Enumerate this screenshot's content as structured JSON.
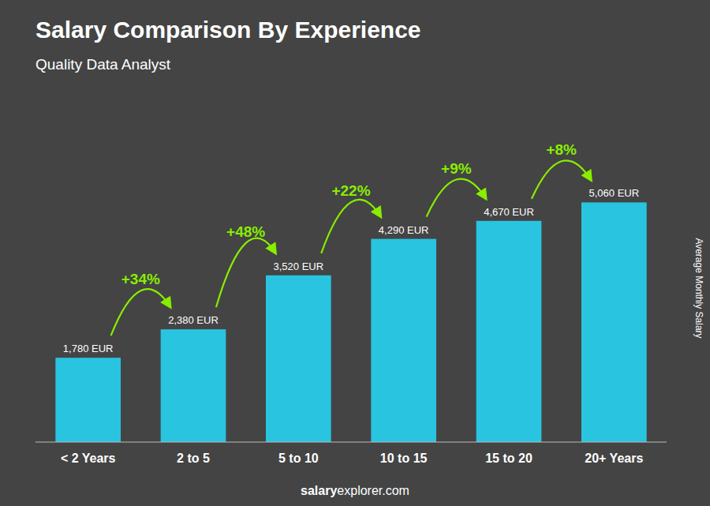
{
  "chart_data": {
    "type": "bar",
    "title": "Salary Comparison By Experience",
    "subtitle": "Quality Data Analyst",
    "ylabel": "Average Monthly Salary",
    "categories": [
      "< 2 Years",
      "2 to 5",
      "5 to 10",
      "10 to 15",
      "15 to 20",
      "20+ Years"
    ],
    "values": [
      1780,
      2380,
      3520,
      4290,
      4670,
      5060
    ],
    "value_labels": [
      "1,780 EUR",
      "2,380 EUR",
      "3,520 EUR",
      "4,290 EUR",
      "4,670 EUR",
      "5,060 EUR"
    ],
    "data_labels": true,
    "color": "#29c4e0",
    "annotations": [
      {
        "text": "+34%",
        "color": "#88ee00"
      },
      {
        "text": "+48%",
        "color": "#88ee00"
      },
      {
        "text": "+22%",
        "color": "#88ee00"
      },
      {
        "text": "+9%",
        "color": "#88ee00"
      },
      {
        "text": "+8%",
        "color": "#88ee00"
      }
    ],
    "footer": [
      "salary",
      "explorer.com"
    ],
    "ylim": [
      0,
      6500
    ],
    "tick_labels": "x",
    "grid": false
  }
}
